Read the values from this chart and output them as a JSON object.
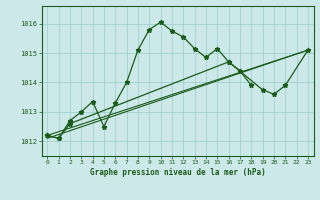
{
  "title": "Graphe pression niveau de la mer (hPa)",
  "xlim": [
    -0.5,
    23.5
  ],
  "ylim": [
    1011.5,
    1016.6
  ],
  "yticks": [
    1012,
    1013,
    1014,
    1015,
    1016
  ],
  "xticks": [
    0,
    1,
    2,
    3,
    4,
    5,
    6,
    7,
    8,
    9,
    10,
    11,
    12,
    13,
    14,
    15,
    16,
    17,
    18,
    19,
    20,
    21,
    22,
    23
  ],
  "background_color": "#cce8e8",
  "grid_color": "#99cccc",
  "line_color": "#1a5c1a",
  "line1_x": [
    0,
    1,
    2,
    3,
    4,
    5,
    6,
    7,
    8,
    9,
    10,
    11,
    12,
    13,
    14,
    15,
    16,
    17,
    18
  ],
  "line1_y": [
    1012.2,
    1012.1,
    1012.7,
    1013.0,
    1013.35,
    1012.5,
    1013.3,
    1014.0,
    1015.1,
    1015.8,
    1016.05,
    1015.75,
    1015.55,
    1015.15,
    1014.85,
    1015.15,
    1014.7,
    1014.4,
    1013.9
  ],
  "line2_x": [
    0,
    1,
    2,
    16,
    19,
    20,
    21,
    23
  ],
  "line2_y": [
    1012.2,
    1012.1,
    1012.6,
    1014.7,
    1013.75,
    1013.6,
    1013.9,
    1015.1
  ],
  "line3_x": [
    0,
    23
  ],
  "line3_y": [
    1012.1,
    1015.1
  ],
  "line4_x": [
    0,
    23
  ],
  "line4_y": [
    1012.1,
    1015.1
  ],
  "figsize": [
    3.2,
    2.0
  ],
  "dpi": 100
}
